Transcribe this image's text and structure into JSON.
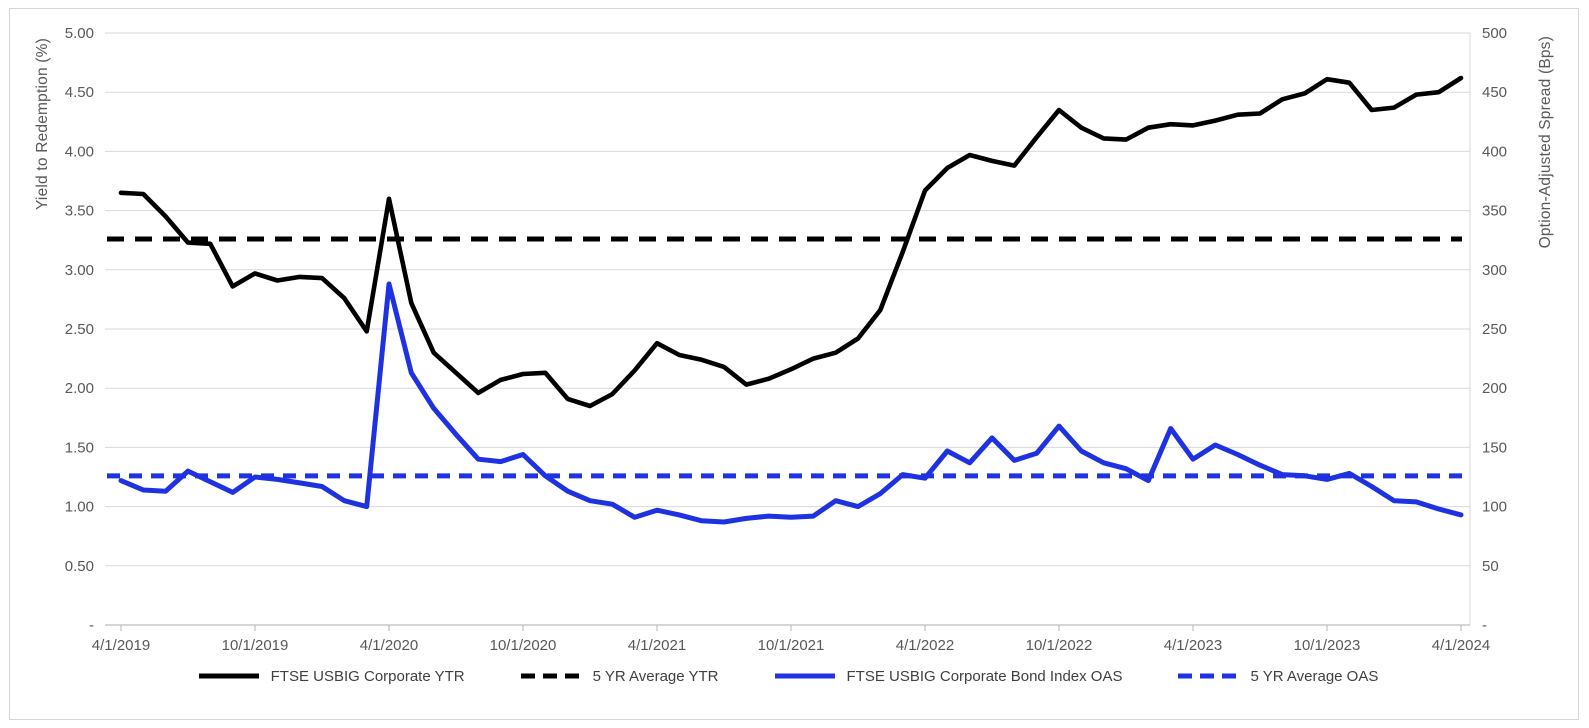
{
  "chart_data": {
    "type": "line",
    "title": "",
    "frequency": "monthly",
    "x_range": "4/1/2019 to 4/1/2024",
    "x_tick_labels": [
      "4/1/2019",
      "10/1/2019",
      "4/1/2020",
      "10/1/2020",
      "4/1/2021",
      "10/1/2021",
      "4/1/2022",
      "10/1/2022",
      "4/1/2023",
      "10/1/2023",
      "4/1/2024"
    ],
    "left_axis": {
      "label": "Yield to Redemption (%)",
      "ticks": [
        "5.00",
        "4.50",
        "4.00",
        "3.50",
        "3.00",
        "2.50",
        "2.00",
        "1.50",
        "1.00",
        "0.50",
        "-"
      ],
      "min": 0,
      "max": 5
    },
    "right_axis": {
      "label": "Option-Adjusted Spread (Bps)",
      "ticks": [
        "500",
        "450",
        "400",
        "350",
        "300",
        "250",
        "200",
        "150",
        "100",
        "50",
        "-"
      ],
      "min": 0,
      "max": 500
    },
    "grid": true,
    "grid_color": "#d9d9d9",
    "axis_line_color": "#bfbfbf",
    "text_color": "#595959",
    "legend_text_color": "#404040",
    "legend_position": "bottom",
    "series": [
      {
        "name": "FTSE USBIG Corporate YTR",
        "axis": "left",
        "style": "solid",
        "color": "#000000",
        "width": 4.6,
        "values": [
          3.65,
          3.64,
          3.45,
          3.23,
          3.22,
          2.86,
          2.97,
          2.91,
          2.94,
          2.93,
          2.76,
          2.48,
          3.6,
          2.72,
          2.3,
          2.13,
          1.96,
          2.07,
          2.12,
          2.13,
          1.91,
          1.85,
          1.95,
          2.15,
          2.38,
          2.28,
          2.24,
          2.18,
          2.03,
          2.08,
          2.16,
          2.25,
          2.3,
          2.42,
          2.66,
          3.15,
          3.67,
          3.86,
          3.97,
          3.92,
          3.88,
          4.12,
          4.35,
          4.2,
          4.11,
          4.1,
          4.2,
          4.23,
          4.22,
          4.26,
          4.31,
          4.32,
          4.44,
          4.49,
          4.61,
          4.58,
          4.35,
          4.37,
          4.48,
          4.5,
          4.62
        ]
      },
      {
        "name": "5 YR Average YTR",
        "axis": "left",
        "style": "dashed",
        "color": "#000000",
        "width": 5,
        "average": 3.26
      },
      {
        "name": "FTSE USBIG Corporate Bond Index OAS",
        "axis": "right",
        "style": "solid",
        "color": "#1e32e2",
        "width": 5,
        "values": [
          122,
          114,
          113,
          130,
          121,
          112,
          125,
          123,
          120,
          117,
          105,
          100,
          288,
          213,
          183,
          161,
          140,
          138,
          144,
          126,
          113,
          105,
          102,
          91,
          97,
          93,
          88,
          87,
          90,
          92,
          91,
          92,
          105,
          100,
          111,
          127,
          124,
          147,
          137,
          158,
          139,
          145,
          168,
          147,
          137,
          132,
          122,
          166,
          140,
          152,
          144,
          135,
          127,
          126,
          123,
          128,
          117,
          105,
          104,
          98,
          93
        ]
      },
      {
        "name": "5 YR Average OAS",
        "axis": "right",
        "style": "dashed",
        "color": "#1e32e2",
        "width": 5,
        "average": 126
      }
    ]
  }
}
